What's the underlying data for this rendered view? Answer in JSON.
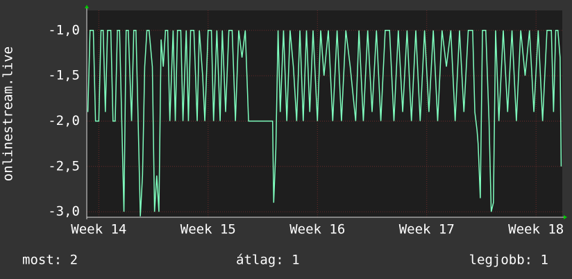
{
  "chart_data": {
    "type": "line",
    "y_label": "onlinestream.live",
    "xlim": [
      13.89,
      18.24
    ],
    "ylim": [
      -3.06,
      -0.78
    ],
    "xticks": [
      {
        "value": 14,
        "label": "Week 14"
      },
      {
        "value": 15,
        "label": "Week 15"
      },
      {
        "value": 16,
        "label": "Week 16"
      },
      {
        "value": 17,
        "label": "Week 17"
      },
      {
        "value": 18,
        "label": "Week 18"
      }
    ],
    "yticks": [
      {
        "value": -1.0,
        "label": "-1,0"
      },
      {
        "value": -1.5,
        "label": "-1,5"
      },
      {
        "value": -2.0,
        "label": "-2,0"
      },
      {
        "value": -2.5,
        "label": "-2,5"
      },
      {
        "value": -3.0,
        "label": "-3,0"
      }
    ],
    "grid": true,
    "x": [
      13.9,
      13.92,
      13.95,
      13.97,
      14.0,
      14.02,
      14.04,
      14.06,
      14.08,
      14.11,
      14.13,
      14.15,
      14.17,
      14.19,
      14.21,
      14.23,
      14.25,
      14.27,
      14.3,
      14.32,
      14.34,
      14.36,
      14.38,
      14.4,
      14.42,
      14.44,
      14.46,
      14.49,
      14.51,
      14.53,
      14.55,
      14.57,
      14.59,
      14.61,
      14.63,
      14.65,
      14.68,
      14.7,
      14.72,
      14.75,
      14.77,
      14.8,
      14.82,
      14.84,
      14.87,
      14.9,
      14.92,
      14.95,
      14.97,
      15.0,
      15.03,
      15.05,
      15.08,
      15.11,
      15.13,
      15.16,
      15.19,
      15.22,
      15.25,
      15.28,
      15.31,
      15.34,
      15.37,
      15.4,
      15.43,
      15.47,
      15.55,
      15.59,
      15.6,
      15.62,
      15.64,
      15.66,
      15.69,
      15.72,
      15.75,
      15.78,
      15.81,
      15.84,
      15.87,
      15.9,
      15.93,
      15.96,
      16.0,
      16.03,
      16.06,
      16.1,
      16.14,
      16.18,
      16.22,
      16.26,
      16.3,
      16.35,
      16.38,
      16.42,
      16.46,
      16.5,
      16.54,
      16.58,
      16.62,
      16.66,
      16.7,
      16.74,
      16.78,
      16.82,
      16.86,
      16.9,
      16.94,
      16.98,
      17.02,
      17.06,
      17.1,
      17.14,
      17.18,
      17.22,
      17.26,
      17.3,
      17.34,
      17.38,
      17.42,
      17.44,
      17.46,
      17.47,
      17.49,
      17.51,
      17.54,
      17.57,
      17.59,
      17.61,
      17.63,
      17.66,
      17.7,
      17.74,
      17.78,
      17.82,
      17.86,
      17.9,
      17.94,
      17.98,
      18.02,
      18.06,
      18.1,
      18.14,
      18.16,
      18.18,
      18.2,
      18.22,
      18.23
    ],
    "series": [
      {
        "name": "onlinestream.live",
        "color": "#7fffbf",
        "values": [
          -1.9,
          -1.0,
          -1.0,
          -2.0,
          -2.0,
          -1.0,
          -1.0,
          -1.9,
          -1.0,
          -1.0,
          -2.0,
          -2.0,
          -1.0,
          -1.0,
          -2.0,
          -3.0,
          -1.0,
          -1.0,
          -2.0,
          -1.0,
          -1.0,
          -2.0,
          -3.05,
          -2.6,
          -1.4,
          -1.0,
          -1.0,
          -1.4,
          -3.0,
          -2.6,
          -3.0,
          -1.1,
          -1.4,
          -1.0,
          -1.0,
          -2.0,
          -1.0,
          -2.0,
          -1.0,
          -1.0,
          -2.0,
          -1.0,
          -2.0,
          -1.0,
          -1.0,
          -2.0,
          -1.0,
          -1.5,
          -2.0,
          -1.0,
          -1.0,
          -2.0,
          -1.0,
          -2.0,
          -1.0,
          -1.9,
          -1.0,
          -1.0,
          -2.0,
          -1.0,
          -1.3,
          -1.0,
          -2.0,
          -2.0,
          -2.0,
          -2.0,
          -2.0,
          -2.0,
          -2.9,
          -2.3,
          -1.0,
          -1.9,
          -1.0,
          -2.0,
          -1.0,
          -1.4,
          -2.0,
          -1.0,
          -2.0,
          -1.0,
          -1.9,
          -1.0,
          -2.0,
          -1.0,
          -1.5,
          -1.0,
          -2.0,
          -1.0,
          -2.0,
          -1.0,
          -1.4,
          -2.0,
          -1.0,
          -2.0,
          -1.0,
          -1.9,
          -1.0,
          -2.0,
          -1.0,
          -1.0,
          -2.0,
          -1.0,
          -1.9,
          -1.0,
          -2.0,
          -1.0,
          -2.0,
          -1.0,
          -1.9,
          -1.0,
          -2.0,
          -1.0,
          -1.4,
          -1.0,
          -2.0,
          -1.0,
          -1.9,
          -1.0,
          -1.0,
          -1.9,
          -2.1,
          -2.25,
          -2.85,
          -1.0,
          -1.0,
          -2.0,
          -3.0,
          -2.9,
          -1.0,
          -2.0,
          -1.0,
          -1.9,
          -1.0,
          -2.0,
          -1.0,
          -1.5,
          -1.0,
          -1.9,
          -1.0,
          -2.0,
          -1.0,
          -1.0,
          -1.9,
          -1.0,
          -1.0,
          -1.3,
          -2.5
        ]
      }
    ],
    "footer": {
      "now": "most: 2",
      "average": "átlag: 1",
      "best": "legjobb: 1"
    }
  }
}
